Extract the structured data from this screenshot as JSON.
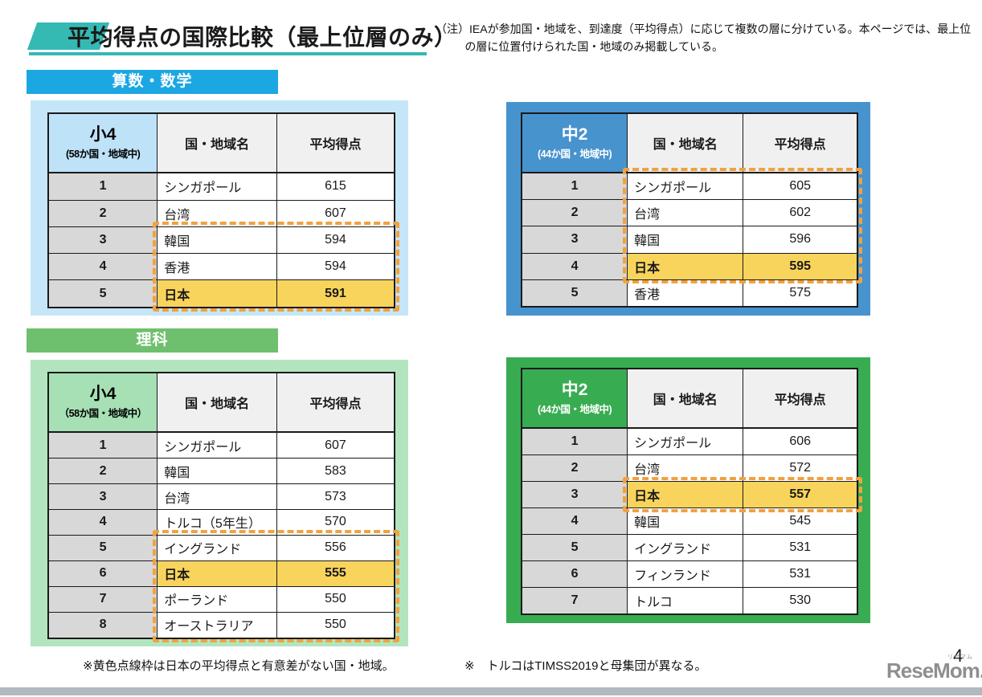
{
  "header": {
    "title": "平均得点の国際比較（最上位層のみ）",
    "note": "（注）IEAが参加国・地域を、到達度（平均得点）に応じて複数の層に分けている。本ページでは、最上位の層に位置付けられた国・地域のみ掲載している。",
    "accent_color": "#35B9B3"
  },
  "sections": [
    {
      "label": "算数・数学",
      "color": "#1BA7E2"
    },
    {
      "label": "理科",
      "color": "#6EC06E"
    }
  ],
  "tables": [
    {
      "name": "math-grade4",
      "grade": "小4",
      "grade_note": "(58か国・地域中)",
      "columns": {
        "country": "国・地域名",
        "score": "平均得点"
      },
      "theme": {
        "frame": "#C5E6F8",
        "header_bg": "#BEE2F8",
        "header_text": "#000000"
      },
      "rows": [
        {
          "rank": "1",
          "country": "シンガポール",
          "score": "615",
          "dashed": false,
          "highlight": false
        },
        {
          "rank": "2",
          "country": "台湾",
          "score": "607",
          "dashed": false,
          "highlight": false
        },
        {
          "rank": "3",
          "country": "韓国",
          "score": "594",
          "dashed": true,
          "highlight": false
        },
        {
          "rank": "4",
          "country": "香港",
          "score": "594",
          "dashed": true,
          "highlight": false
        },
        {
          "rank": "5",
          "country": "日本",
          "score": "591",
          "dashed": true,
          "highlight": true
        }
      ]
    },
    {
      "name": "math-grade8",
      "grade": "中2",
      "grade_note": "(44か国・地域中)",
      "columns": {
        "country": "国・地域名",
        "score": "平均得点"
      },
      "theme": {
        "frame": "#4793CE",
        "header_bg": "#4793CE",
        "header_text": "#FFFFFF"
      },
      "rows": [
        {
          "rank": "1",
          "country": "シンガポール",
          "score": "605",
          "dashed": true,
          "highlight": false
        },
        {
          "rank": "2",
          "country": "台湾",
          "score": "602",
          "dashed": true,
          "highlight": false
        },
        {
          "rank": "3",
          "country": "韓国",
          "score": "596",
          "dashed": true,
          "highlight": false
        },
        {
          "rank": "4",
          "country": "日本",
          "score": "595",
          "dashed": true,
          "highlight": true
        },
        {
          "rank": "5",
          "country": "香港",
          "score": "575",
          "dashed": false,
          "highlight": false
        }
      ]
    },
    {
      "name": "science-grade4",
      "grade": "小4",
      "grade_note": "（58か国・地域中）",
      "columns": {
        "country": "国・地域名",
        "score": "平均得点"
      },
      "theme": {
        "frame": "#B2E5BE",
        "header_bg": "#A6E0B4",
        "header_text": "#000000"
      },
      "rows": [
        {
          "rank": "1",
          "country": "シンガポール",
          "score": "607",
          "dashed": false,
          "highlight": false
        },
        {
          "rank": "2",
          "country": "韓国",
          "score": "583",
          "dashed": false,
          "highlight": false
        },
        {
          "rank": "3",
          "country": "台湾",
          "score": "573",
          "dashed": false,
          "highlight": false
        },
        {
          "rank": "4",
          "country": "トルコ（5年生）",
          "score": "570",
          "dashed": false,
          "highlight": false
        },
        {
          "rank": "5",
          "country": "イングランド",
          "score": "556",
          "dashed": true,
          "highlight": false
        },
        {
          "rank": "6",
          "country": "日本",
          "score": "555",
          "dashed": true,
          "highlight": true
        },
        {
          "rank": "7",
          "country": "ポーランド",
          "score": "550",
          "dashed": true,
          "highlight": false
        },
        {
          "rank": "8",
          "country": "オーストラリア",
          "score": "550",
          "dashed": true,
          "highlight": false
        }
      ]
    },
    {
      "name": "science-grade8",
      "grade": "中2",
      "grade_note": "(44か国・地域中)",
      "columns": {
        "country": "国・地域名",
        "score": "平均得点"
      },
      "theme": {
        "frame": "#38AC50",
        "header_bg": "#38AC50",
        "header_text": "#FFFFFF"
      },
      "rows": [
        {
          "rank": "1",
          "country": "シンガポール",
          "score": "606",
          "dashed": false,
          "highlight": false
        },
        {
          "rank": "2",
          "country": "台湾",
          "score": "572",
          "dashed": false,
          "highlight": false
        },
        {
          "rank": "3",
          "country": "日本",
          "score": "557",
          "dashed": true,
          "highlight": true
        },
        {
          "rank": "4",
          "country": "韓国",
          "score": "545",
          "dashed": false,
          "highlight": false
        },
        {
          "rank": "5",
          "country": "イングランド",
          "score": "531",
          "dashed": false,
          "highlight": false
        },
        {
          "rank": "6",
          "country": "フィンランド",
          "score": "531",
          "dashed": false,
          "highlight": false
        },
        {
          "rank": "7",
          "country": "トルコ",
          "score": "530",
          "dashed": false,
          "highlight": false
        }
      ]
    }
  ],
  "footnotes": {
    "left": "※黄色点線枠は日本の平均得点と有意差がない国・地域。",
    "right": "※　トルコはTIMSS2019と母集団が異なる。"
  },
  "footer": {
    "page_number": "4",
    "logo_text": "ReseMom.",
    "logo_ruby": "リセマム"
  },
  "colors": {
    "highlight": "#F9D45C",
    "dashed": "#F1A13F",
    "rank_bg": "#D8D8D8",
    "colhead_bg": "#F0F0F0"
  }
}
